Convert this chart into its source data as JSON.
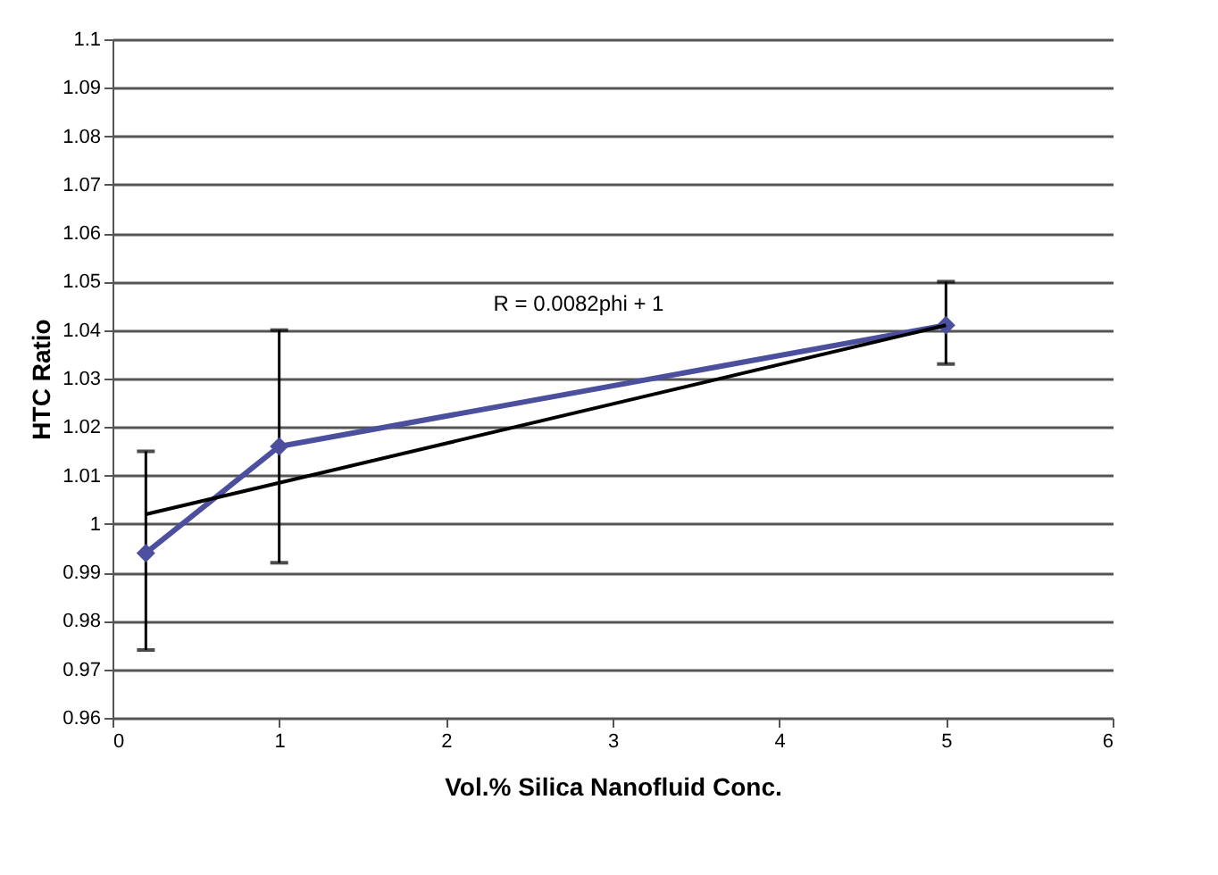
{
  "chart_data": {
    "type": "line",
    "xlabel": "Vol.% Silica Nanofluid Conc.",
    "ylabel": "HTC Ratio",
    "xlim": [
      0,
      6
    ],
    "xticks": [
      0,
      1,
      2,
      3,
      4,
      5,
      6
    ],
    "ylim": [
      0.96,
      1.1
    ],
    "yticks": [
      0.96,
      0.97,
      0.98,
      0.99,
      1,
      1.01,
      1.02,
      1.03,
      1.04,
      1.05,
      1.06,
      1.07,
      1.08,
      1.09,
      1.1
    ],
    "grid": "y",
    "series": [
      {
        "color": "#4b4f9e",
        "marker": "diamond",
        "x": [
          0.2,
          1,
          5
        ],
        "values": [
          0.994,
          1.016,
          1.041
        ],
        "errors": [
          [
            0.974,
            1.015
          ],
          [
            0.992,
            1.04
          ],
          [
            1.033,
            1.05
          ]
        ]
      },
      {
        "color": "#000000",
        "marker": "none",
        "x": [
          0.2,
          5
        ],
        "values": [
          1.002,
          1.041
        ]
      }
    ],
    "annotations": [
      "R = 0.0082phi + 1"
    ]
  }
}
